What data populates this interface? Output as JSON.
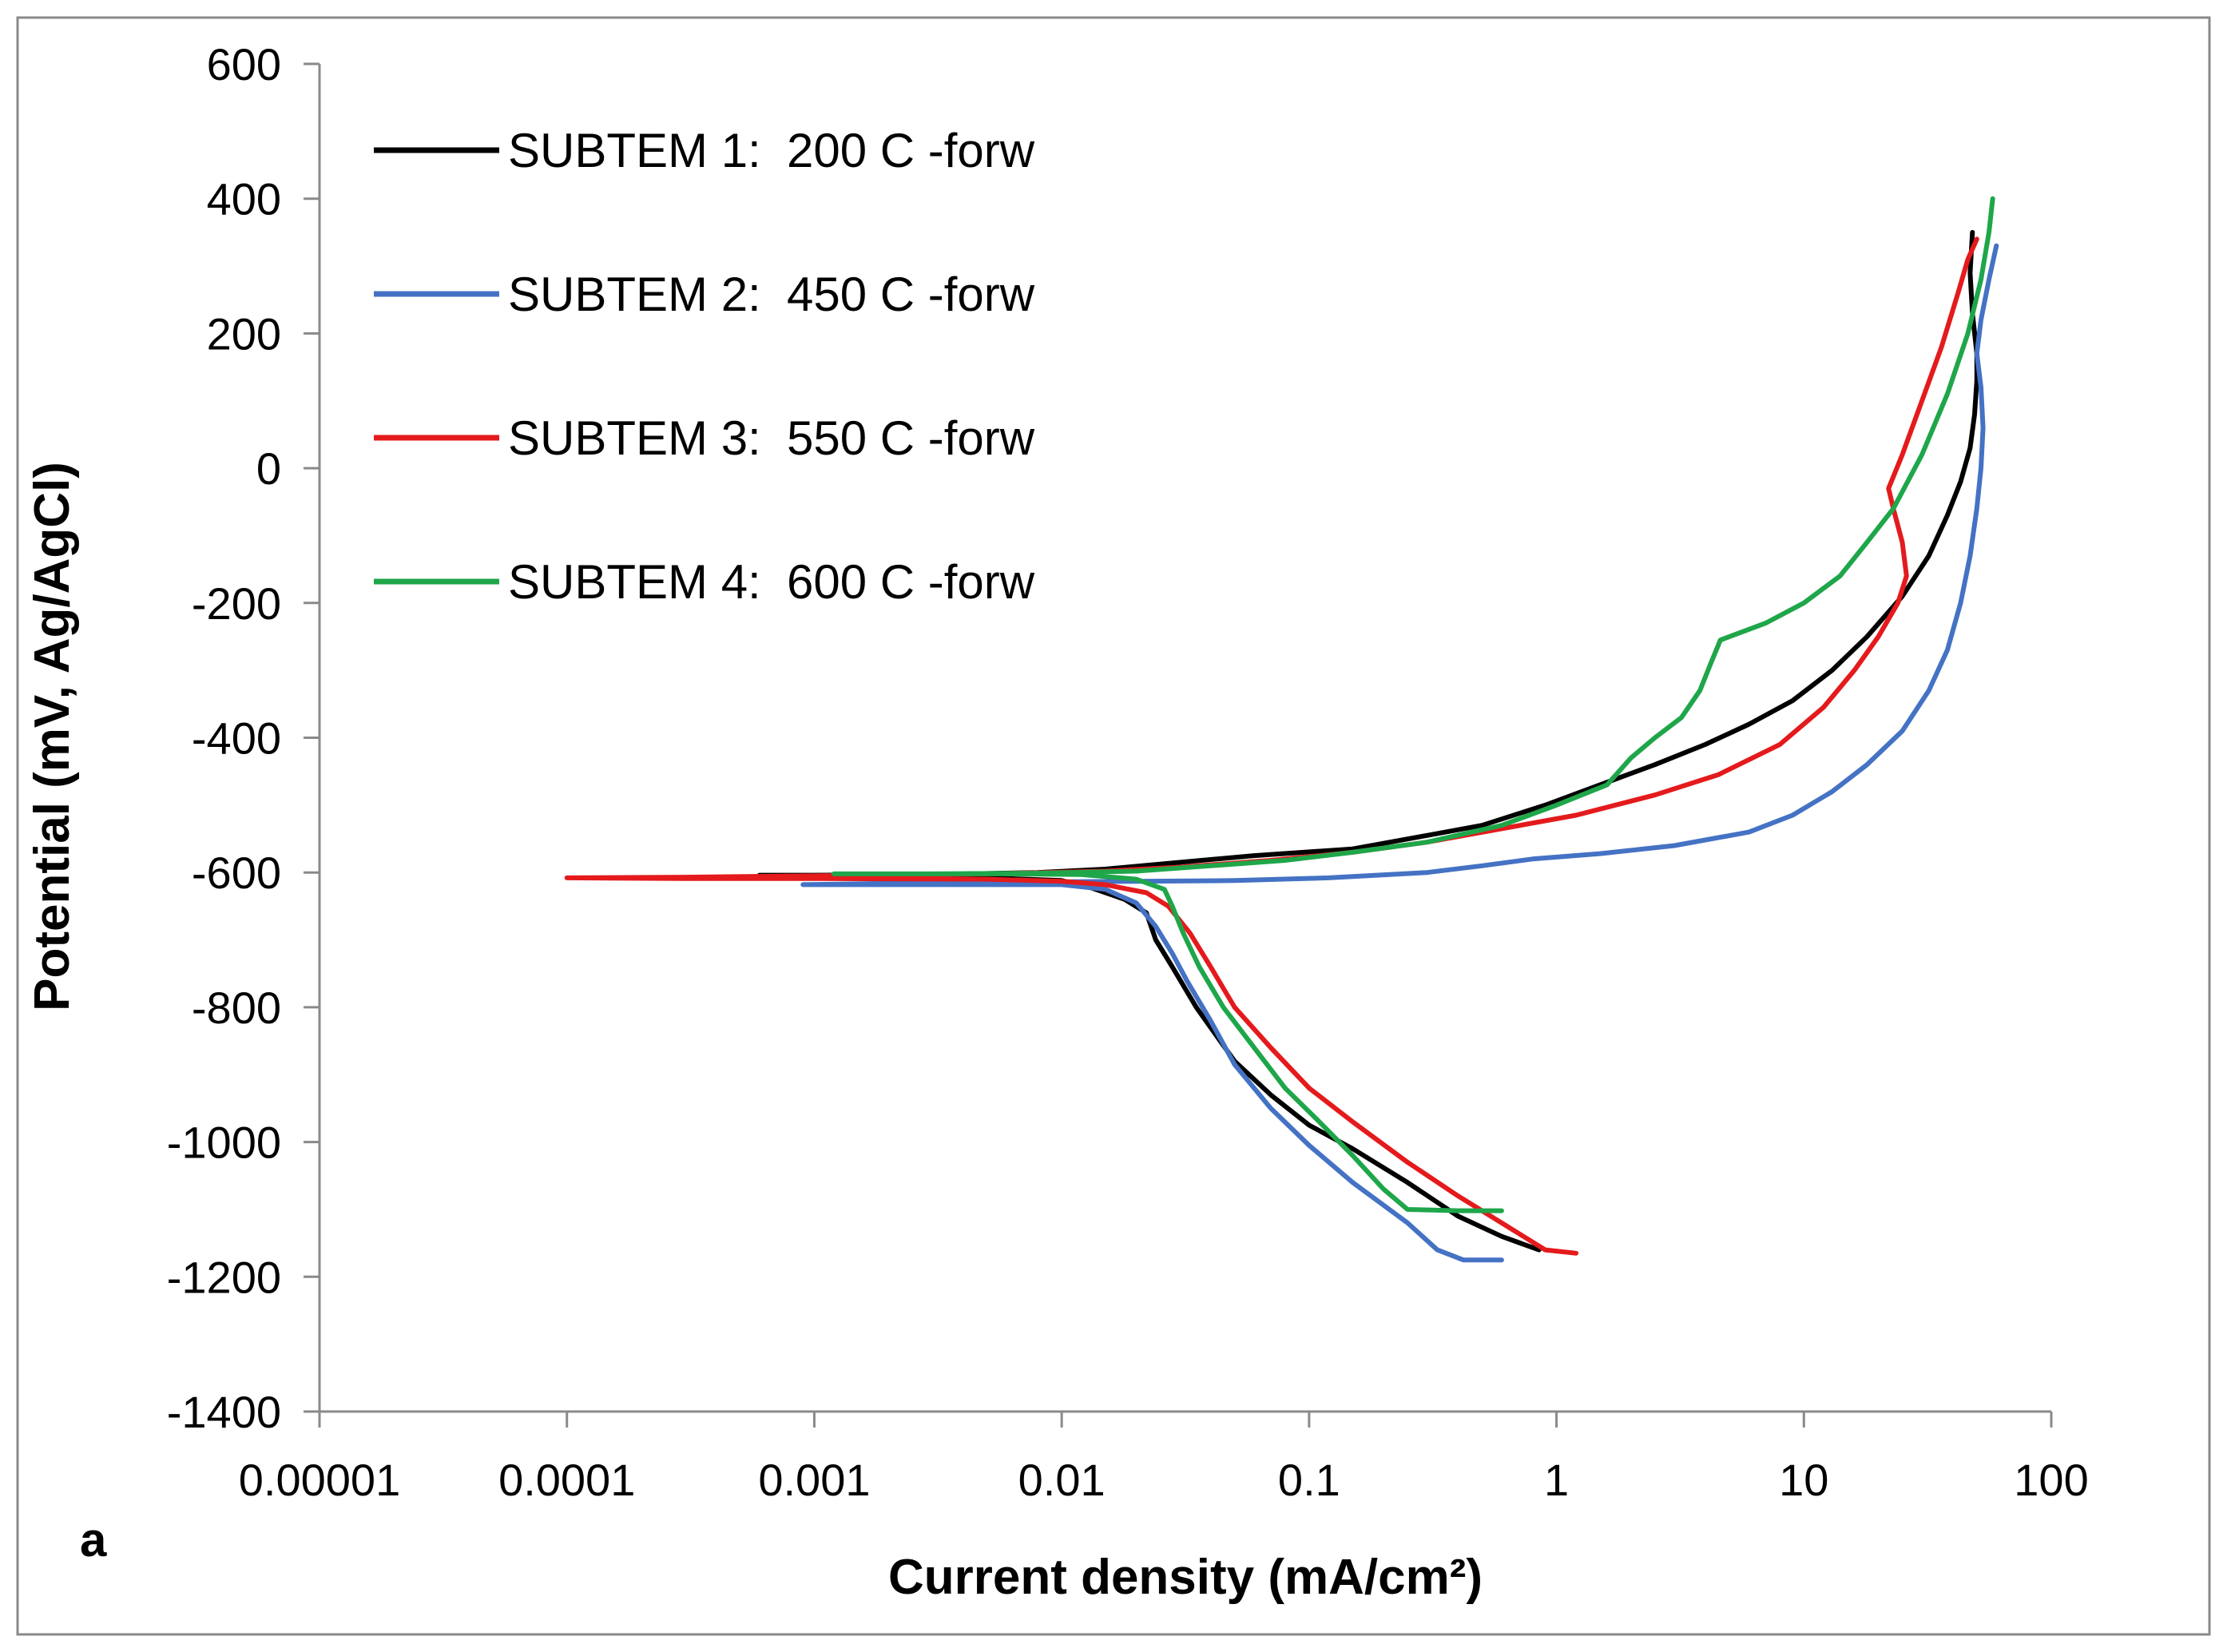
{
  "chart_data": {
    "type": "line",
    "panel_label": "a",
    "xlabel": "Current density (mA/cm²)",
    "ylabel": "Potential (mV, Ag/AgCl)",
    "xscale": "log",
    "xlim": [
      1e-05,
      100
    ],
    "ylim": [
      -1400,
      600
    ],
    "x_ticks": [
      {
        "value": 1e-05,
        "label": "0.00001"
      },
      {
        "value": 0.0001,
        "label": "0.0001"
      },
      {
        "value": 0.001,
        "label": "0.001"
      },
      {
        "value": 0.01,
        "label": "0.01"
      },
      {
        "value": 0.1,
        "label": "0.1"
      },
      {
        "value": 1,
        "label": "1"
      },
      {
        "value": 10,
        "label": "10"
      },
      {
        "value": 100,
        "label": "100"
      }
    ],
    "y_ticks": [
      {
        "value": 600,
        "label": "600"
      },
      {
        "value": 400,
        "label": "400"
      },
      {
        "value": 200,
        "label": "200"
      },
      {
        "value": 0,
        "label": "0"
      },
      {
        "value": -200,
        "label": "-200"
      },
      {
        "value": -400,
        "label": "-400"
      },
      {
        "value": -600,
        "label": "-600"
      },
      {
        "value": -800,
        "label": "-800"
      },
      {
        "value": -1000,
        "label": "-1000"
      },
      {
        "value": -1200,
        "label": "-1200"
      },
      {
        "value": -1400,
        "label": "-1400"
      }
    ],
    "grid": false,
    "legend_position": "top-left",
    "series": [
      {
        "name": "SUBTEM 1:200 C -forw",
        "legend_prefix": "SUBTEM 1:",
        "legend_suffix": "200 C -forw",
        "color": "#000000",
        "points": [
          [
            0.85,
            -1160
          ],
          [
            0.6,
            -1140
          ],
          [
            0.4,
            -1110
          ],
          [
            0.25,
            -1060
          ],
          [
            0.15,
            -1010
          ],
          [
            0.1,
            -975
          ],
          [
            0.07,
            -930
          ],
          [
            0.05,
            -880
          ],
          [
            0.035,
            -800
          ],
          [
            0.028,
            -740
          ],
          [
            0.024,
            -700
          ],
          [
            0.022,
            -660
          ],
          [
            0.018,
            -640
          ],
          [
            0.013,
            -622
          ],
          [
            0.01,
            -612
          ],
          [
            0.005,
            -608
          ],
          [
            0.002,
            -606
          ],
          [
            0.001,
            -604
          ],
          [
            0.0006,
            -604
          ],
          [
            0.001,
            -604
          ],
          [
            0.003,
            -603
          ],
          [
            0.008,
            -600
          ],
          [
            0.015,
            -595
          ],
          [
            0.03,
            -585
          ],
          [
            0.06,
            -575
          ],
          [
            0.15,
            -565
          ],
          [
            0.3,
            -545
          ],
          [
            0.5,
            -530
          ],
          [
            0.9,
            -500
          ],
          [
            1.5,
            -470
          ],
          [
            2.5,
            -440
          ],
          [
            4,
            -410
          ],
          [
            6,
            -380
          ],
          [
            9,
            -345
          ],
          [
            13,
            -300
          ],
          [
            18,
            -250
          ],
          [
            25,
            -190
          ],
          [
            32,
            -130
          ],
          [
            38,
            -70
          ],
          [
            43,
            -20
          ],
          [
            47,
            30
          ],
          [
            49,
            80
          ],
          [
            50,
            130
          ],
          [
            50,
            170
          ],
          [
            48,
            230
          ],
          [
            47,
            290
          ],
          [
            48,
            350
          ]
        ]
      },
      {
        "name": "SUBTEM 2:450 C -forw",
        "legend_prefix": "SUBTEM 2:",
        "legend_suffix": "450 C -forw",
        "color": "#4472C4",
        "points": [
          [
            0.6,
            -1175
          ],
          [
            0.42,
            -1175
          ],
          [
            0.33,
            -1160
          ],
          [
            0.25,
            -1120
          ],
          [
            0.15,
            -1060
          ],
          [
            0.1,
            -1005
          ],
          [
            0.07,
            -950
          ],
          [
            0.05,
            -885
          ],
          [
            0.04,
            -820
          ],
          [
            0.032,
            -760
          ],
          [
            0.028,
            -720
          ],
          [
            0.024,
            -680
          ],
          [
            0.02,
            -645
          ],
          [
            0.015,
            -625
          ],
          [
            0.01,
            -618
          ],
          [
            0.005,
            -618
          ],
          [
            0.002,
            -618
          ],
          [
            0.0009,
            -618
          ],
          [
            0.002,
            -616
          ],
          [
            0.008,
            -614
          ],
          [
            0.02,
            -613
          ],
          [
            0.05,
            -612
          ],
          [
            0.12,
            -608
          ],
          [
            0.3,
            -600
          ],
          [
            0.5,
            -590
          ],
          [
            0.8,
            -580
          ],
          [
            1.5,
            -572
          ],
          [
            3,
            -560
          ],
          [
            6,
            -540
          ],
          [
            9,
            -515
          ],
          [
            13,
            -480
          ],
          [
            18,
            -440
          ],
          [
            25,
            -390
          ],
          [
            32,
            -330
          ],
          [
            38,
            -270
          ],
          [
            43,
            -200
          ],
          [
            47,
            -130
          ],
          [
            50,
            -60
          ],
          [
            52,
            0
          ],
          [
            53,
            60
          ],
          [
            52,
            120
          ],
          [
            50,
            170
          ],
          [
            52,
            220
          ],
          [
            56,
            280
          ],
          [
            60,
            330
          ]
        ]
      },
      {
        "name": "SUBTEM 3:550 C -forw",
        "legend_prefix": "SUBTEM 3:",
        "legend_suffix": "550 C -forw",
        "color": "#E41A1C",
        "points": [
          [
            1.2,
            -1165
          ],
          [
            0.9,
            -1160
          ],
          [
            0.6,
            -1120
          ],
          [
            0.4,
            -1080
          ],
          [
            0.25,
            -1030
          ],
          [
            0.15,
            -970
          ],
          [
            0.1,
            -920
          ],
          [
            0.07,
            -860
          ],
          [
            0.05,
            -800
          ],
          [
            0.04,
            -740
          ],
          [
            0.033,
            -690
          ],
          [
            0.027,
            -650
          ],
          [
            0.022,
            -630
          ],
          [
            0.015,
            -618
          ],
          [
            0.01,
            -613
          ],
          [
            0.005,
            -610
          ],
          [
            0.001,
            -609
          ],
          [
            0.0003,
            -609
          ],
          [
            0.0001,
            -608
          ],
          [
            0.0003,
            -607
          ],
          [
            0.001,
            -605
          ],
          [
            0.005,
            -602
          ],
          [
            0.015,
            -598
          ],
          [
            0.03,
            -592
          ],
          [
            0.07,
            -582
          ],
          [
            0.15,
            -570
          ],
          [
            0.3,
            -555
          ],
          [
            0.6,
            -535
          ],
          [
            1.2,
            -515
          ],
          [
            2.5,
            -485
          ],
          [
            4.5,
            -455
          ],
          [
            8,
            -410
          ],
          [
            12,
            -355
          ],
          [
            16,
            -300
          ],
          [
            20,
            -250
          ],
          [
            24,
            -200
          ],
          [
            26,
            -160
          ],
          [
            25,
            -110
          ],
          [
            23,
            -60
          ],
          [
            22,
            -30
          ],
          [
            25,
            20
          ],
          [
            30,
            100
          ],
          [
            36,
            180
          ],
          [
            42,
            260
          ],
          [
            46,
            310
          ],
          [
            50,
            340
          ]
        ]
      },
      {
        "name": "SUBTEM 4:600 C -forw",
        "legend_prefix": "SUBTEM 4:",
        "legend_suffix": "600 C -forw",
        "color": "#1FA64A",
        "points": [
          [
            0.6,
            -1102
          ],
          [
            0.4,
            -1102
          ],
          [
            0.25,
            -1100
          ],
          [
            0.2,
            -1070
          ],
          [
            0.15,
            -1020
          ],
          [
            0.11,
            -970
          ],
          [
            0.08,
            -920
          ],
          [
            0.06,
            -860
          ],
          [
            0.045,
            -800
          ],
          [
            0.036,
            -740
          ],
          [
            0.031,
            -690
          ],
          [
            0.028,
            -650
          ],
          [
            0.026,
            -625
          ],
          [
            0.02,
            -610
          ],
          [
            0.012,
            -603
          ],
          [
            0.006,
            -602
          ],
          [
            0.003,
            -602
          ],
          [
            0.0012,
            -602
          ],
          [
            0.003,
            -602
          ],
          [
            0.008,
            -601
          ],
          [
            0.02,
            -598
          ],
          [
            0.04,
            -590
          ],
          [
            0.08,
            -582
          ],
          [
            0.15,
            -570
          ],
          [
            0.3,
            -555
          ],
          [
            0.6,
            -530
          ],
          [
            1,
            -500
          ],
          [
            1.6,
            -470
          ],
          [
            2,
            -430
          ],
          [
            2.5,
            -400
          ],
          [
            3.2,
            -370
          ],
          [
            3.8,
            -330
          ],
          [
            4.2,
            -290
          ],
          [
            4.6,
            -255
          ],
          [
            7,
            -230
          ],
          [
            10,
            -200
          ],
          [
            14,
            -160
          ],
          [
            18,
            -110
          ],
          [
            23,
            -60
          ],
          [
            30,
            20
          ],
          [
            38,
            110
          ],
          [
            46,
            200
          ],
          [
            52,
            280
          ],
          [
            56,
            350
          ],
          [
            58,
            400
          ]
        ]
      }
    ]
  }
}
